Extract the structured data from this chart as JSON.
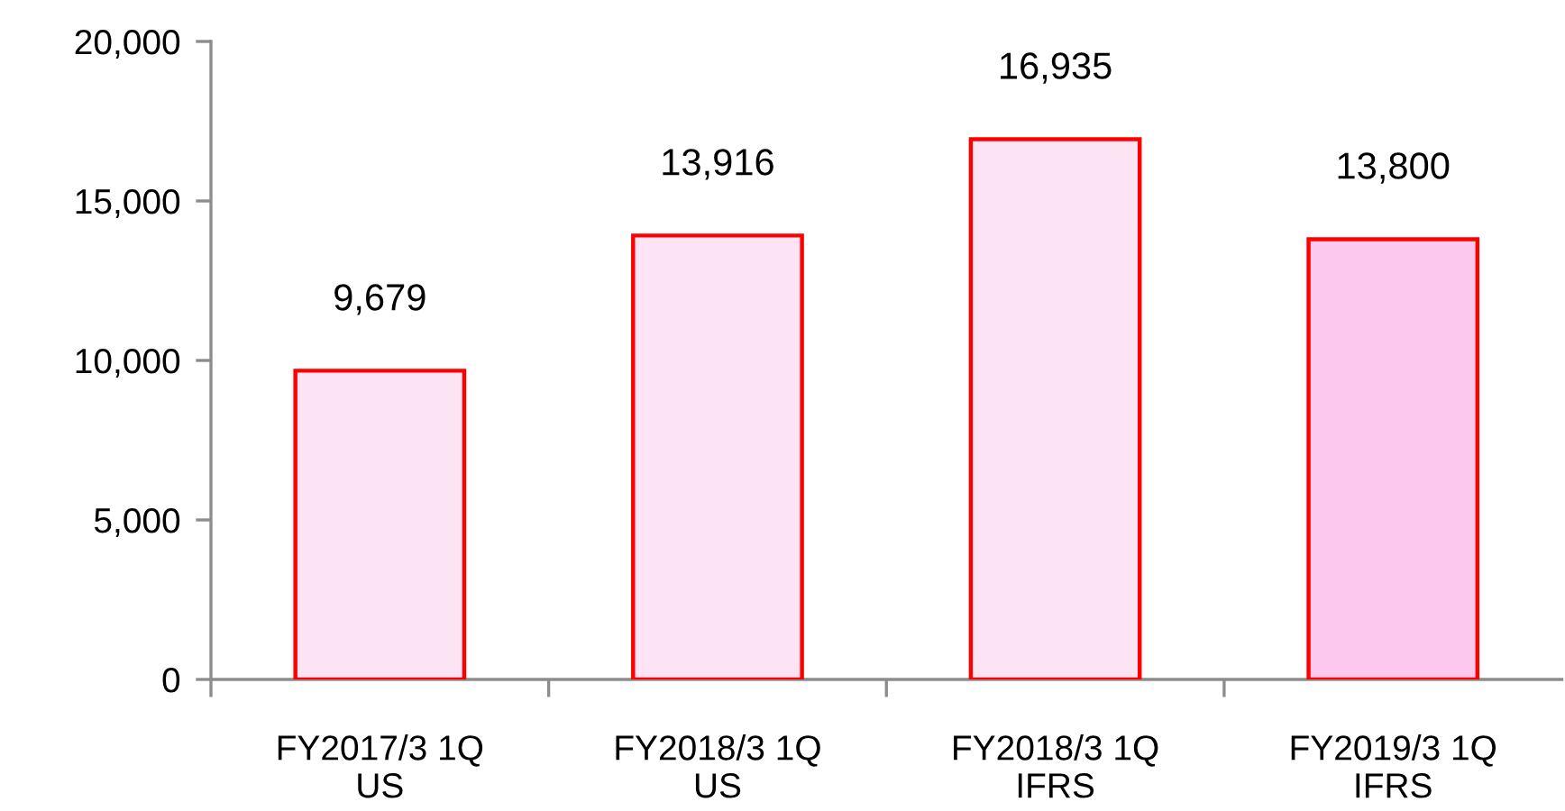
{
  "chart_data": {
    "type": "bar",
    "categories": [
      "FY2017/3 1Q\nUS",
      "FY2018/3 1Q\nUS",
      "FY2018/3 1Q\nIFRS",
      "FY2019/3 1Q\nIFRS"
    ],
    "values": [
      9679,
      13916,
      16935,
      13800
    ],
    "colors": [
      "#fce4f4",
      "#fce4f4",
      "#fce4f4",
      "#fcc8ee"
    ],
    "value_labels": [
      "9,679",
      "13,916",
      "16,935",
      "13,800"
    ],
    "ylim": [
      0,
      20000
    ],
    "yticks": [
      {
        "value": 0,
        "label": "0"
      },
      {
        "value": 5000,
        "label": "5,000"
      },
      {
        "value": 10000,
        "label": "10,000"
      },
      {
        "value": 15000,
        "label": "15,000"
      },
      {
        "value": 20000,
        "label": "20,000"
      }
    ],
    "grid": false,
    "legend": false
  }
}
